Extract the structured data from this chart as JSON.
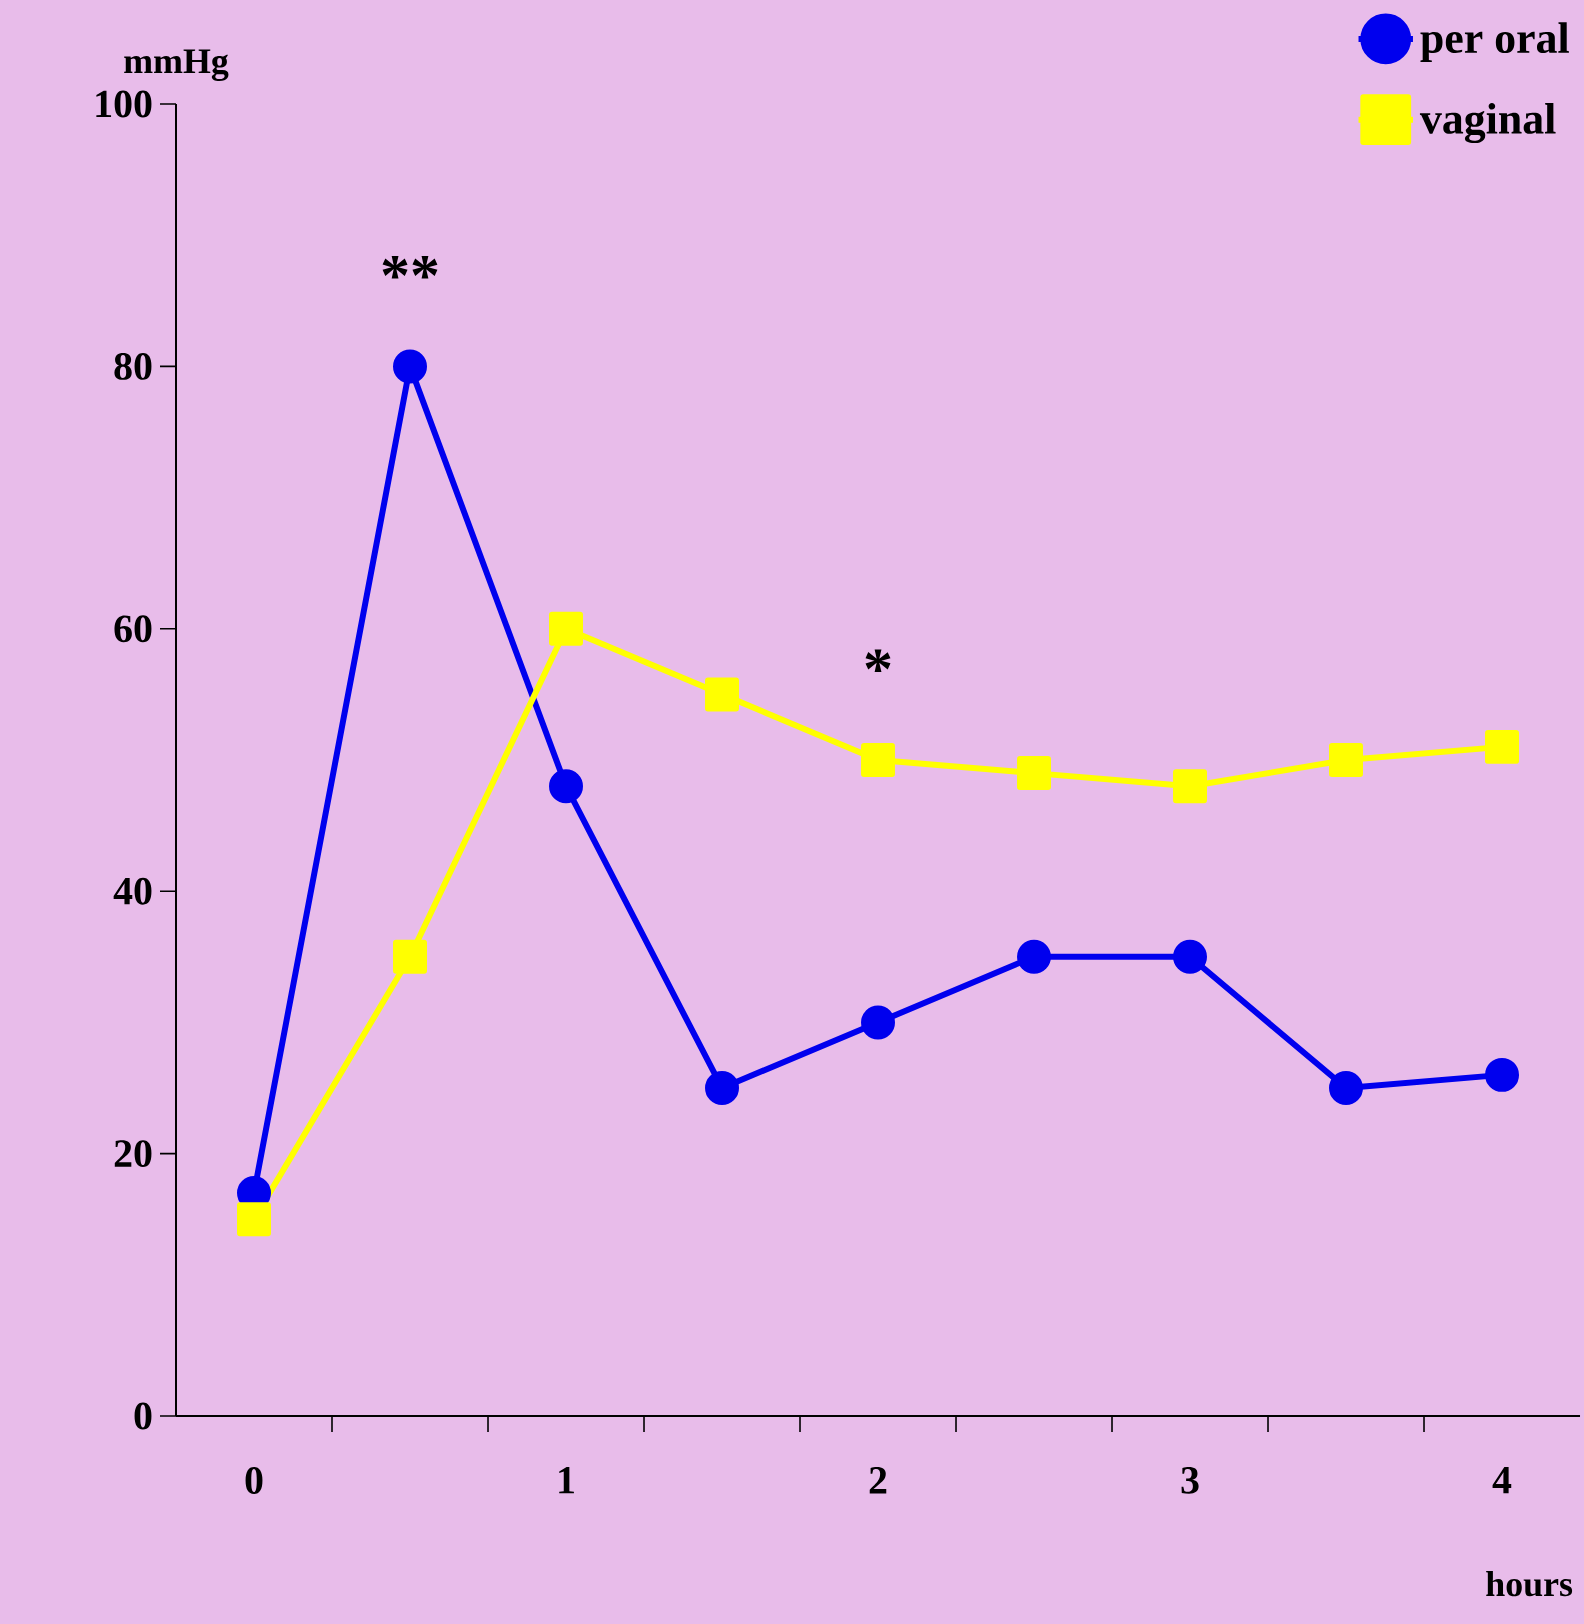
{
  "chart_data": {
    "type": "line",
    "x": [
      0,
      0.5,
      1,
      1.5,
      2,
      2.5,
      3,
      3.5,
      4
    ],
    "series": [
      {
        "name": "per oral",
        "color": "#0000ee",
        "marker": "circle",
        "values": [
          17,
          80,
          48,
          25,
          30,
          35,
          35,
          25,
          26
        ]
      },
      {
        "name": "vaginal",
        "color": "#ffff00",
        "marker": "square",
        "values": [
          15,
          35,
          60,
          55,
          50,
          49,
          48,
          50,
          51
        ]
      }
    ],
    "xlabel": "hours",
    "ylabel": "mmHg",
    "xlim": [
      -0.25,
      4.25
    ],
    "ylim": [
      0,
      100
    ],
    "xticks": [
      0,
      1,
      2,
      3,
      4,
      {
        "value": 0.25,
        "label": null
      },
      {
        "value": 0.75,
        "label": null
      },
      {
        "value": 1.25,
        "label": null
      },
      {
        "value": 1.75,
        "label": null
      },
      {
        "value": 2.25,
        "label": null
      },
      {
        "value": 2.75,
        "label": null
      },
      {
        "value": 3.25,
        "label": null
      },
      {
        "value": 3.75,
        "label": null
      }
    ],
    "yticks": [
      0,
      20,
      40,
      60,
      80,
      100
    ],
    "annotations": [
      {
        "text": "**",
        "x": 0.5,
        "y": 80
      },
      {
        "text": "*",
        "x": 2,
        "y": 50
      }
    ],
    "legend": "top right",
    "grid": false,
    "line_style": "solid"
  }
}
